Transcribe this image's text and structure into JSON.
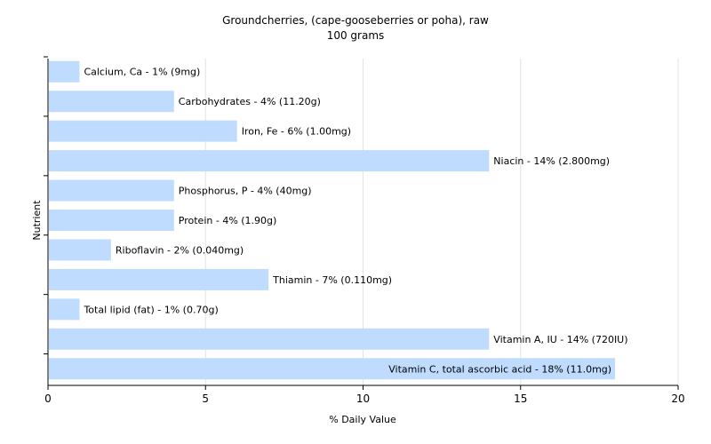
{
  "chart_data": {
    "type": "bar",
    "orientation": "horizontal",
    "title": "Groundcherries, (cape-gooseberries or poha), raw",
    "subtitle": "100 grams",
    "xlabel": "% Daily Value",
    "ylabel": "Nutrient",
    "xlim": [
      0,
      20
    ],
    "xticks": [
      0,
      5,
      10,
      15,
      20
    ],
    "grid": true,
    "bar_color": "#bfdcff",
    "categories": [
      "Calcium, Ca",
      "Carbohydrates",
      "Iron, Fe",
      "Niacin",
      "Phosphorus, P",
      "Protein",
      "Riboflavin",
      "Thiamin",
      "Total lipid (fat)",
      "Vitamin A, IU",
      "Vitamin C, total ascorbic acid"
    ],
    "values": [
      1,
      4,
      6,
      14,
      4,
      4,
      2,
      7,
      1,
      14,
      18
    ],
    "labels": [
      "Calcium, Ca - 1% (9mg)",
      "Carbohydrates - 4% (11.20g)",
      "Iron, Fe - 6% (1.00mg)",
      "Niacin - 14% (2.800mg)",
      "Phosphorus, P - 4% (40mg)",
      "Protein - 4% (1.90g)",
      "Riboflavin - 2% (0.040mg)",
      "Thiamin - 7% (0.110mg)",
      "Total lipid (fat) - 1% (0.70g)",
      "Vitamin A, IU - 14% (720IU)",
      "Vitamin C, total ascorbic acid - 18% (11.0mg)"
    ]
  }
}
